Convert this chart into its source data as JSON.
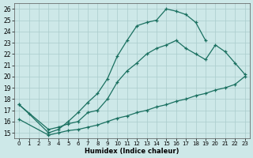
{
  "xlabel": "Humidex (Indice chaleur)",
  "background_color": "#cde8e8",
  "grid_color": "#b8d8d8",
  "line_color": "#1a7060",
  "xlim": [
    -0.5,
    23.5
  ],
  "ylim": [
    14.5,
    26.5
  ],
  "xticks": [
    0,
    1,
    2,
    3,
    4,
    5,
    6,
    7,
    8,
    9,
    10,
    11,
    12,
    13,
    14,
    15,
    16,
    17,
    18,
    19,
    20,
    21,
    22,
    23
  ],
  "yticks": [
    15,
    16,
    17,
    18,
    19,
    20,
    21,
    22,
    23,
    24,
    25,
    26
  ],
  "line1_x": [
    0,
    1,
    3,
    4,
    5,
    6,
    7,
    8,
    9,
    10,
    11,
    12,
    13,
    14,
    15,
    16,
    17,
    18,
    19
  ],
  "line1_y": [
    17.5,
    16.7,
    15.0,
    15.3,
    16.0,
    16.8,
    17.7,
    18.5,
    19.8,
    21.8,
    23.2,
    24.5,
    24.8,
    25.0,
    26.0,
    25.8,
    25.5,
    24.8,
    23.2
  ],
  "line2_x": [
    0,
    3,
    4,
    5,
    6,
    7,
    8,
    9,
    10,
    11,
    12,
    13,
    14,
    15,
    16,
    17,
    18,
    19,
    20,
    21,
    22,
    23
  ],
  "line2_y": [
    17.5,
    15.3,
    15.5,
    15.8,
    16.0,
    16.8,
    17.0,
    18.0,
    19.5,
    20.5,
    21.2,
    22.0,
    22.5,
    22.8,
    23.2,
    22.5,
    22.0,
    21.5,
    22.8,
    22.2,
    21.2,
    20.2
  ],
  "line3_x": [
    0,
    3,
    4,
    5,
    6,
    7,
    8,
    9,
    10,
    11,
    12,
    13,
    14,
    15,
    16,
    17,
    18,
    19,
    20,
    21,
    22,
    23
  ],
  "line3_y": [
    16.2,
    14.8,
    15.0,
    15.2,
    15.3,
    15.5,
    15.7,
    16.0,
    16.3,
    16.5,
    16.8,
    17.0,
    17.3,
    17.5,
    17.8,
    18.0,
    18.3,
    18.5,
    18.8,
    19.0,
    19.3,
    20.0
  ]
}
